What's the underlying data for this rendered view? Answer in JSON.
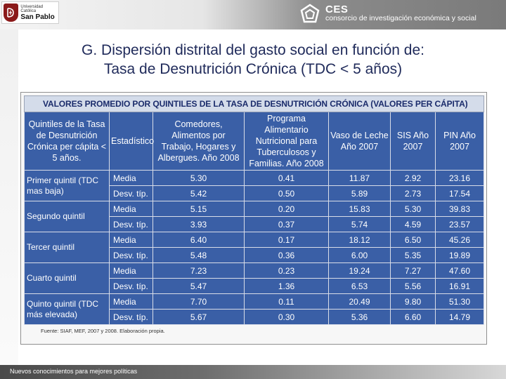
{
  "header": {
    "university_line1": "Universidad Católica",
    "university_line2": "San Pablo",
    "org_name": "CES",
    "org_tagline": "consorcio de investigación económica y social"
  },
  "slide": {
    "title_line1": "G. Dispersión distrital del gasto social en función de:",
    "title_line2": "Tasa de Desnutrición Crónica (TDC < 5 años)"
  },
  "table": {
    "caption": "VALORES PROMEDIO POR QUINTILES DE LA TASA DE DESNUTRICIÓN CRÓNICA (VALORES PER CÁPITA)",
    "columns": [
      "Quintiles de la Tasa de Desnutrición Crónica per cápita < 5 años.",
      "Estadístico",
      "Comedores, Alimentos por Trabajo, Hogares y Albergues. Año 2008",
      "Programa Alimentario Nutricional para Tuberculosos y Familias. Año 2008",
      "Vaso de Leche Año 2007",
      "SIS Año 2007",
      "PIN Año 2007"
    ],
    "groups": [
      {
        "quintile": "Primer quintil (TDC mas baja)",
        "rows": [
          {
            "stat": "Media",
            "values": [
              "5.30",
              "0.41",
              "11.87",
              "2.92",
              "23.16"
            ]
          },
          {
            "stat": "Desv. típ.",
            "values": [
              "5.42",
              "0.50",
              "5.89",
              "2.73",
              "17.54"
            ]
          }
        ]
      },
      {
        "quintile": "Segundo quintil",
        "rows": [
          {
            "stat": "Media",
            "values": [
              "5.15",
              "0.20",
              "15.83",
              "5.30",
              "39.83"
            ]
          },
          {
            "stat": "Desv. típ.",
            "values": [
              "3.93",
              "0.37",
              "5.74",
              "4.59",
              "23.57"
            ]
          }
        ]
      },
      {
        "quintile": "Tercer quintil",
        "rows": [
          {
            "stat": "Media",
            "values": [
              "6.40",
              "0.17",
              "18.12",
              "6.50",
              "45.26"
            ]
          },
          {
            "stat": "Desv. típ.",
            "values": [
              "5.48",
              "0.36",
              "6.00",
              "5.35",
              "19.89"
            ]
          }
        ]
      },
      {
        "quintile": "Cuarto quintil",
        "rows": [
          {
            "stat": "Media",
            "values": [
              "7.23",
              "0.23",
              "19.24",
              "7.27",
              "47.60"
            ]
          },
          {
            "stat": "Desv. típ.",
            "values": [
              "5.47",
              "1.36",
              "6.53",
              "5.56",
              "16.91"
            ]
          }
        ]
      },
      {
        "quintile": "Quinto quintil (TDC más elevada)",
        "rows": [
          {
            "stat": "Media",
            "values": [
              "7.70",
              "0.11",
              "20.49",
              "9.80",
              "51.30"
            ]
          },
          {
            "stat": "Desv. típ.",
            "values": [
              "5.67",
              "0.30",
              "5.36",
              "6.60",
              "14.79"
            ]
          }
        ]
      }
    ],
    "source": "Fuente: SIAF, MEF, 2007 y 2008. Elaboración propia."
  },
  "footer": {
    "tagline": "Nuevos conocimientos para mejores políticas"
  },
  "colors": {
    "header_blue": "#3a5fa6",
    "title_text": "#1f2a5a"
  }
}
